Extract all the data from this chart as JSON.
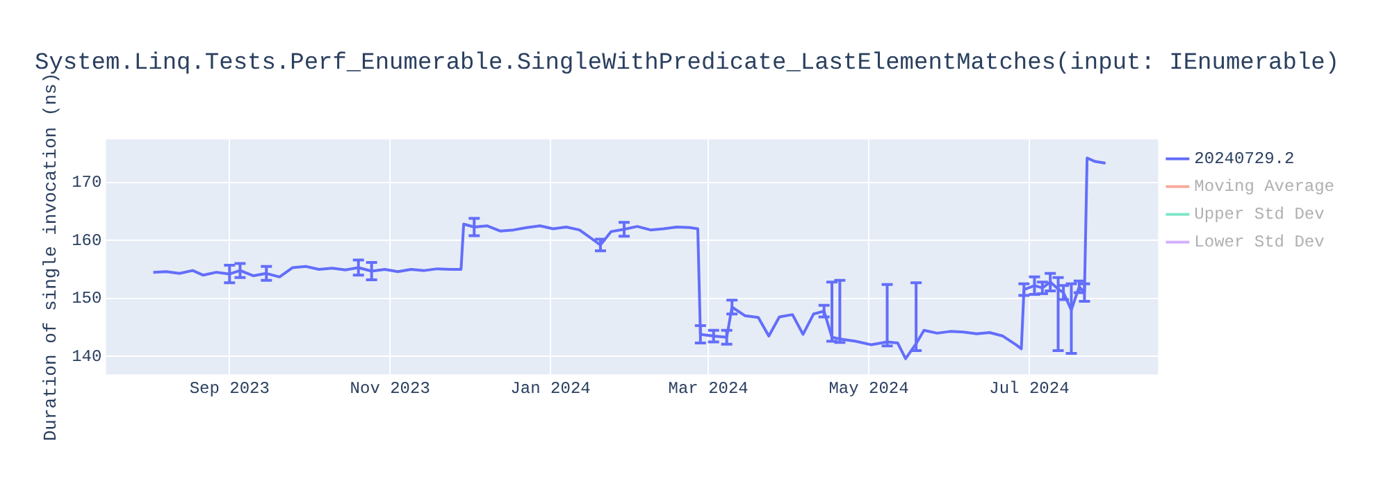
{
  "chart_data": {
    "type": "line",
    "title": "System.Linq.Tests.Perf_Enumerable.SingleWithPredicate_LastElementMatches(input: IEnumerable)",
    "ylabel": "Duration of single invocation (ns)",
    "x": [
      "2023-08-03",
      "2023-08-08",
      "2023-08-13",
      "2023-08-18",
      "2023-08-22",
      "2023-08-27",
      "2023-09-01",
      "2023-09-05",
      "2023-09-10",
      "2023-09-15",
      "2023-09-20",
      "2023-09-25",
      "2023-09-30",
      "2023-10-05",
      "2023-10-10",
      "2023-10-15",
      "2023-10-20",
      "2023-10-25",
      "2023-10-30",
      "2023-11-04",
      "2023-11-09",
      "2023-11-14",
      "2023-11-19",
      "2023-11-24",
      "2023-11-28",
      "2023-11-29",
      "2023-12-03",
      "2023-12-08",
      "2023-12-13",
      "2023-12-18",
      "2023-12-23",
      "2023-12-28",
      "2024-01-02",
      "2024-01-07",
      "2024-01-12",
      "2024-01-17",
      "2024-01-20",
      "2024-01-24",
      "2024-01-29",
      "2024-02-03",
      "2024-02-08",
      "2024-02-13",
      "2024-02-18",
      "2024-02-23",
      "2024-02-26",
      "2024-02-27",
      "2024-03-03",
      "2024-03-08",
      "2024-03-10",
      "2024-03-15",
      "2024-03-20",
      "2024-03-24",
      "2024-03-28",
      "2024-04-02",
      "2024-04-06",
      "2024-04-10",
      "2024-04-14",
      "2024-04-17",
      "2024-04-20",
      "2024-04-26",
      "2024-05-02",
      "2024-05-08",
      "2024-05-12",
      "2024-05-15",
      "2024-05-19",
      "2024-05-22",
      "2024-05-27",
      "2024-06-01",
      "2024-06-06",
      "2024-06-11",
      "2024-06-16",
      "2024-06-21",
      "2024-06-26",
      "2024-06-28",
      "2024-06-29",
      "2024-07-03",
      "2024-07-06",
      "2024-07-09",
      "2024-07-12",
      "2024-07-14",
      "2024-07-17",
      "2024-07-20",
      "2024-07-22",
      "2024-07-23",
      "2024-07-26",
      "2024-07-30"
    ],
    "series": [
      {
        "name": "20240729.2",
        "color": "#636efa",
        "values": [
          154.5,
          154.6,
          154.3,
          154.8,
          154.0,
          154.5,
          154.2,
          154.8,
          153.9,
          154.3,
          153.7,
          155.3,
          155.5,
          155.0,
          155.2,
          154.9,
          155.3,
          154.7,
          155.0,
          154.6,
          155.0,
          154.8,
          155.1,
          155.0,
          155.0,
          162.8,
          162.3,
          162.5,
          161.6,
          161.8,
          162.2,
          162.5,
          162.0,
          162.3,
          161.8,
          160.2,
          159.2,
          161.5,
          161.9,
          162.4,
          161.8,
          162.0,
          162.3,
          162.2,
          162.0,
          143.8,
          143.5,
          143.3,
          148.5,
          147.0,
          146.7,
          143.5,
          146.8,
          147.2,
          143.8,
          147.3,
          147.8,
          143.3,
          143.0,
          142.6,
          142.0,
          142.5,
          142.3,
          139.6,
          142.2,
          144.5,
          144.0,
          144.3,
          144.2,
          143.9,
          144.1,
          143.5,
          142.0,
          141.3,
          151.5,
          152.2,
          151.8,
          152.8,
          151.6,
          151.0,
          148.0,
          152.0,
          151.0,
          174.2,
          173.6,
          173.3
        ],
        "errors": [
          null,
          null,
          null,
          null,
          null,
          null,
          1.5,
          1.2,
          null,
          1.2,
          null,
          null,
          null,
          null,
          null,
          null,
          1.3,
          1.5,
          null,
          null,
          null,
          null,
          null,
          null,
          null,
          null,
          1.5,
          null,
          null,
          null,
          null,
          null,
          null,
          null,
          null,
          null,
          1.0,
          null,
          1.2,
          null,
          null,
          null,
          null,
          null,
          null,
          1.5,
          1.0,
          1.2,
          1.2,
          null,
          null,
          null,
          null,
          null,
          null,
          null,
          1.0,
          [
            142.6,
            152.8
          ],
          [
            142.4,
            153.1
          ],
          null,
          null,
          [
            141.8,
            152.4
          ],
          null,
          null,
          [
            141.0,
            152.7
          ],
          null,
          null,
          null,
          null,
          null,
          null,
          null,
          null,
          null,
          1.0,
          1.5,
          1.0,
          1.5,
          [
            141.0,
            153.6
          ],
          1.2,
          [
            140.5,
            152.5
          ],
          1.0,
          1.5,
          null,
          null,
          null
        ]
      },
      {
        "name": "Moving Average",
        "color": "#f7aa9d",
        "values": [
          null,
          null,
          null,
          null,
          null,
          null,
          null,
          null,
          null,
          null,
          null,
          null,
          null,
          null,
          null,
          null,
          null,
          null,
          null,
          null,
          null,
          null,
          null,
          null,
          null,
          null,
          null,
          null,
          null,
          null,
          null,
          null,
          null,
          null,
          null,
          null,
          null,
          null,
          null,
          null,
          null,
          null,
          null,
          null,
          null,
          null,
          null,
          null,
          null,
          null,
          null,
          null,
          null,
          null,
          null,
          null,
          null,
          null,
          null,
          null,
          null,
          null,
          null,
          null,
          null,
          null,
          null,
          null,
          null,
          null,
          null,
          null,
          null,
          null,
          null,
          null,
          null,
          null,
          null,
          null,
          null,
          null,
          null,
          null,
          null,
          null
        ]
      },
      {
        "name": "Upper Std Dev",
        "color": "#80e6ca",
        "values": [
          null,
          null,
          null,
          null,
          null,
          null,
          null,
          null,
          null,
          null,
          null,
          null,
          null,
          null,
          null,
          null,
          null,
          null,
          null,
          null,
          null,
          null,
          null,
          null,
          null,
          null,
          null,
          null,
          null,
          null,
          null,
          null,
          null,
          null,
          null,
          null,
          null,
          null,
          null,
          null,
          null,
          null,
          null,
          null,
          null,
          null,
          null,
          null,
          null,
          null,
          null,
          null,
          null,
          null,
          null,
          null,
          null,
          null,
          null,
          null,
          null,
          null,
          null,
          null,
          null,
          null,
          null,
          null,
          null,
          null,
          null,
          null,
          null,
          null,
          null,
          null,
          null,
          null,
          null,
          null,
          null,
          null,
          null,
          null,
          null,
          null
        ]
      },
      {
        "name": "Lower Std Dev",
        "color": "#d5b1fd",
        "values": [
          null,
          null,
          null,
          null,
          null,
          null,
          null,
          null,
          null,
          null,
          null,
          null,
          null,
          null,
          null,
          null,
          null,
          null,
          null,
          null,
          null,
          null,
          null,
          null,
          null,
          null,
          null,
          null,
          null,
          null,
          null,
          null,
          null,
          null,
          null,
          null,
          null,
          null,
          null,
          null,
          null,
          null,
          null,
          null,
          null,
          null,
          null,
          null,
          null,
          null,
          null,
          null,
          null,
          null,
          null,
          null,
          null,
          null,
          null,
          null,
          null,
          null,
          null,
          null,
          null,
          null,
          null,
          null,
          null,
          null,
          null,
          null,
          null,
          null,
          null,
          null,
          null,
          null,
          null,
          null,
          null,
          null,
          null,
          null,
          null,
          null
        ]
      }
    ],
    "xlim": [
      "2023-07-16",
      "2024-08-19"
    ],
    "xticks": [
      {
        "value": "2023-09-01",
        "label": "Sep 2023"
      },
      {
        "value": "2023-11-01",
        "label": "Nov 2023"
      },
      {
        "value": "2024-01-01",
        "label": "Jan 2024"
      },
      {
        "value": "2024-03-01",
        "label": "Mar 2024"
      },
      {
        "value": "2024-05-01",
        "label": "May 2024"
      },
      {
        "value": "2024-07-01",
        "label": "Jul 2024"
      }
    ],
    "ylim": [
      136.9,
      177.4
    ],
    "yticks": [
      140,
      150,
      160,
      170
    ],
    "grid": true,
    "legend": "top right",
    "line_style": "solid"
  }
}
